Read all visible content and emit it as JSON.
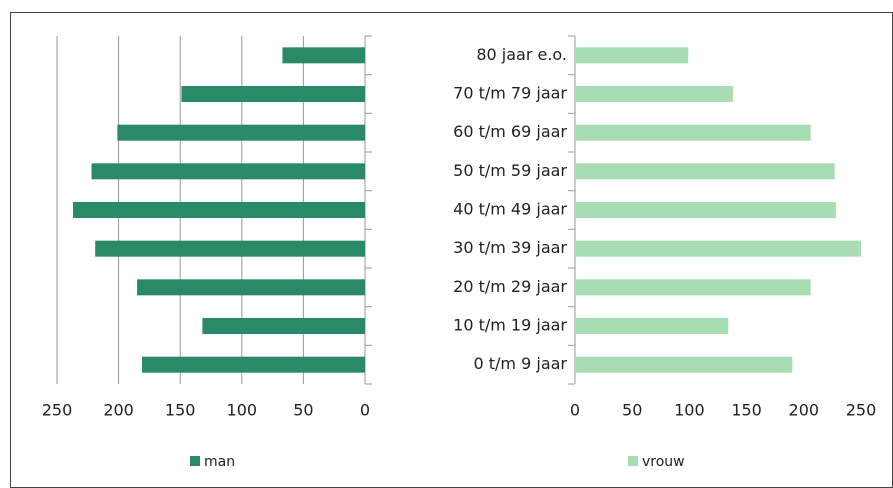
{
  "chart_data": [
    {
      "type": "bar",
      "orientation": "horizontal",
      "reversed": true,
      "grid": true,
      "series": [
        {
          "name": "man",
          "color": "#2a8a68",
          "values": [
            67,
            149,
            201,
            222,
            237,
            219,
            185,
            132,
            181
          ]
        }
      ],
      "xlim": [
        0,
        250
      ],
      "xticks": [
        0,
        50,
        100,
        150,
        200,
        250
      ]
    },
    {
      "type": "bar",
      "orientation": "horizontal",
      "reversed": false,
      "grid": false,
      "categories": [
        "80 jaar e.o.",
        "70 t/m 79 jaar",
        "60 t/m 69 jaar",
        "50 t/m 59 jaar",
        "40 t/m 49 jaar",
        "30 t/m 39 jaar",
        "20 t/m 29 jaar",
        "10 t/m 19 jaar",
        "0 t/m 9 jaar"
      ],
      "series": [
        {
          "name": "vrouw",
          "color": "#a8dcb2",
          "values": [
            99,
            138,
            206,
            227,
            228,
            250,
            206,
            134,
            190
          ]
        }
      ],
      "xlim": [
        0,
        250
      ],
      "xticks": [
        0,
        50,
        100,
        150,
        200,
        250
      ]
    }
  ]
}
